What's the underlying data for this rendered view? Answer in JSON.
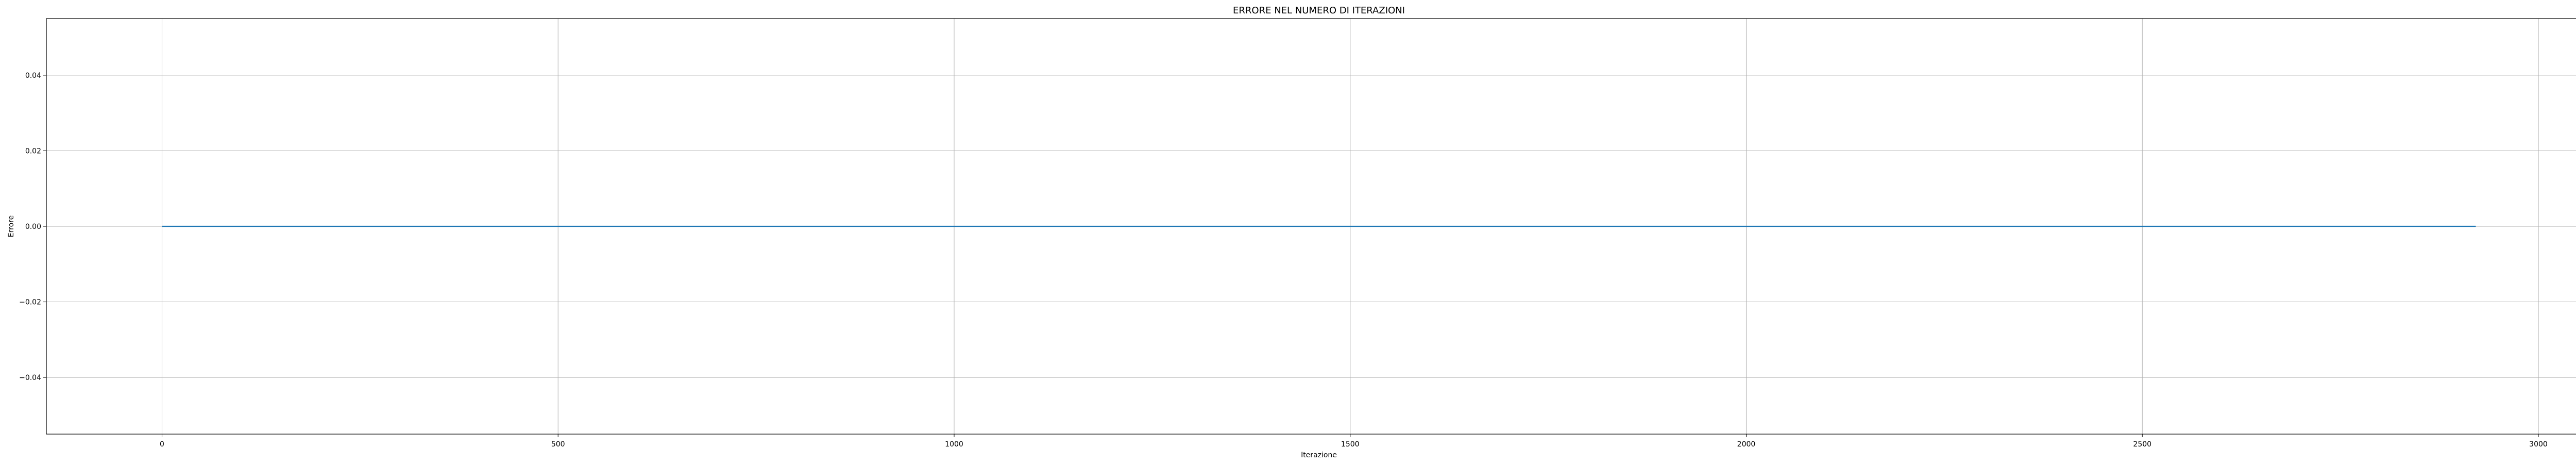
{
  "chart_data": {
    "type": "line",
    "title": "ERRORE NEL NUMERO DI ITERAZIONI",
    "xlabel": "Iterazione",
    "ylabel": "Errore",
    "xlim": [
      -146,
      3067
    ],
    "ylim": [
      -0.055,
      0.055
    ],
    "xticks": [
      0,
      500,
      1000,
      1500,
      2000,
      2500,
      3000
    ],
    "xtick_labels": [
      "0",
      "500",
      "1000",
      "1500",
      "2000",
      "2500",
      "3000"
    ],
    "yticks": [
      -0.04,
      -0.02,
      0.0,
      0.02,
      0.04
    ],
    "ytick_labels": [
      "−0.04",
      "−0.02",
      "0.00",
      "0.02",
      "0.04"
    ],
    "grid": true,
    "colors": {
      "line": "#1f77b4"
    },
    "series": [
      {
        "x": [
          0,
          2921
        ],
        "y": [
          0.0,
          0.0
        ]
      }
    ]
  }
}
